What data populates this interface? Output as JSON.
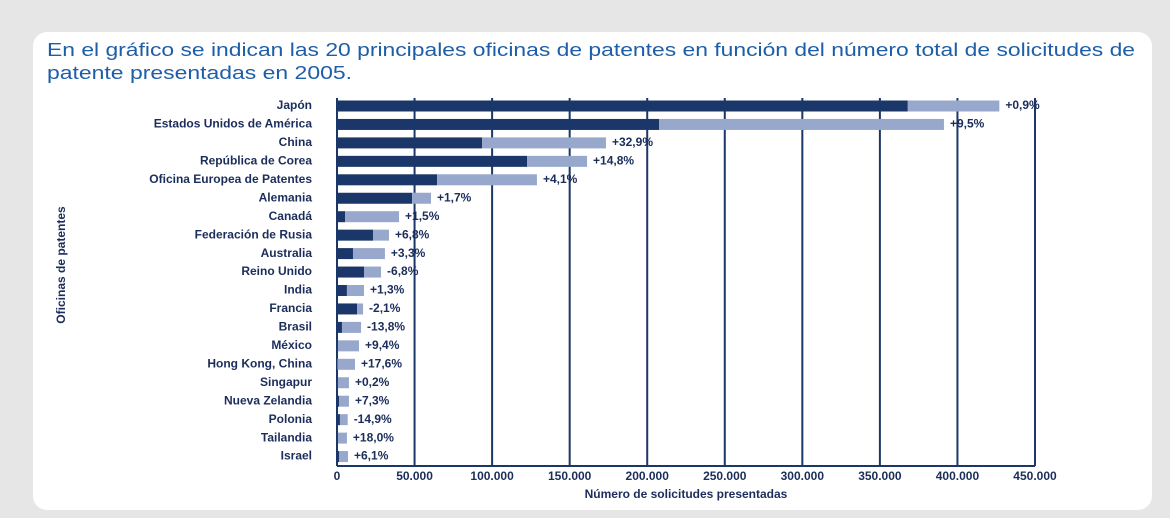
{
  "chart_data": {
    "type": "stacked_barh",
    "title": [
      "En el gráfico se indican las 20 principales oficinas de patentes en función del número total de solicitudes de",
      "patente presentadas en 2005."
    ],
    "xlabel": "Número de solicitudes presentadas",
    "ylabel": "Oficinas de patentes",
    "categories": [
      "Japón",
      "Estados Unidos de América",
      "China",
      "República de Corea",
      "Oficina Europea de Patentes",
      "Alemania",
      "Canadá",
      "Federación de Rusia",
      "Australia",
      "Reino Unido",
      "India",
      "Francia",
      "Brasil",
      "México",
      "Hong Kong, China",
      "Singapur",
      "Nueva Zelandia",
      "Polonia",
      "Tailandia",
      "Israel"
    ],
    "series": [
      {
        "color": "#1b3668",
        "values": [
          368000,
          207600,
          93500,
          122500,
          64500,
          48400,
          5200,
          23200,
          10300,
          17400,
          6400,
          12900,
          3200,
          600,
          300,
          600,
          1300,
          1900,
          600,
          1300
        ]
      },
      {
        "color": "#97a8cc",
        "values": [
          59000,
          183700,
          79900,
          38700,
          64400,
          12200,
          34800,
          10300,
          20600,
          11000,
          11000,
          3900,
          12300,
          13600,
          11300,
          7100,
          6400,
          5000,
          5800,
          5800
        ]
      }
    ],
    "annotations": [
      "+0,9%",
      "+9,5%",
      "+32,9%",
      "+14,8%",
      "+4,1%",
      "+1,7%",
      "+1,5%",
      "+6,8%",
      "+3,3%",
      "-6,8%",
      "+1,3%",
      "-2,1%",
      "-13,8%",
      "+9,4%",
      "+17,6%",
      "+0,2%",
      "+7,3%",
      "-14,9%",
      "+18,0%",
      "+6,1%"
    ],
    "xlim": [
      0,
      450000
    ],
    "xticks": [
      0,
      {
        "value": 50000,
        "label": "50.000"
      },
      {
        "value": 100000,
        "label": "100.000"
      },
      {
        "value": 150000,
        "label": "150.000"
      },
      {
        "value": 200000,
        "label": "200.000"
      },
      {
        "value": 250000,
        "label": "250.000"
      },
      {
        "value": 300000,
        "label": "300.000"
      },
      {
        "value": 350000,
        "label": "350.000"
      },
      {
        "value": 400000,
        "label": "400.000"
      },
      {
        "value": 450000,
        "label": "450.000"
      }
    ],
    "grid": true
  }
}
